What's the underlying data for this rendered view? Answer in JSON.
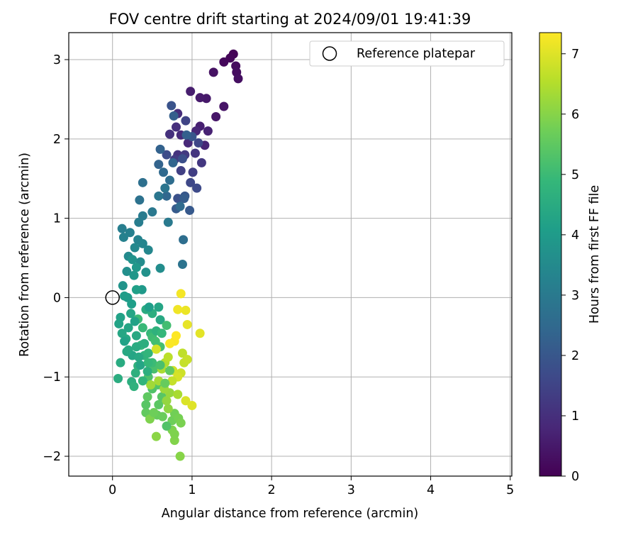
{
  "chart_data": {
    "type": "scatter",
    "title": "FOV centre drift starting at 2024/09/01 19:41:39",
    "xlabel": "Angular distance from reference (arcmin)",
    "ylabel": "Rotation from reference (arcmin)",
    "xlim": [
      -0.55,
      5.02
    ],
    "ylim": [
      -2.25,
      3.34
    ],
    "x_ticks": [
      0,
      1,
      2,
      3,
      4,
      5
    ],
    "y_ticks": [
      -2,
      -1,
      0,
      1,
      2,
      3
    ],
    "x_tick_labels": [
      "0",
      "1",
      "2",
      "3",
      "4",
      "5"
    ],
    "y_tick_labels": [
      "−2",
      "−1",
      "0",
      "1",
      "2",
      "3"
    ],
    "grid": true,
    "legend": {
      "placement": "top-right",
      "entries": [
        "Reference platepar"
      ]
    },
    "reference_point": {
      "x": 0.0,
      "y": 0.0,
      "label": "Reference platepar"
    },
    "colorbar": {
      "label": "Hours from first FF file",
      "colormap": "viridis",
      "range": [
        0,
        7.35
      ],
      "ticks": [
        0,
        1,
        2,
        3,
        4,
        5,
        6,
        7
      ],
      "tick_labels": [
        "0",
        "1",
        "2",
        "3",
        "4",
        "5",
        "6",
        "7"
      ]
    },
    "colormap_stops": [
      "#440154",
      "#482878",
      "#3e4989",
      "#31688e",
      "#26828e",
      "#1f9e89",
      "#35b779",
      "#6ece58",
      "#b5de2b",
      "#fde725"
    ],
    "series": [
      {
        "name": "Hours from first FF file",
        "columns": [
          "x",
          "y",
          "hours"
        ],
        "points": [
          [
            1.52,
            3.07,
            0.05
          ],
          [
            1.48,
            3.02,
            0.1
          ],
          [
            1.4,
            2.97,
            0.15
          ],
          [
            1.55,
            2.92,
            0.2
          ],
          [
            1.56,
            2.84,
            0.25
          ],
          [
            1.58,
            2.76,
            0.3
          ],
          [
            1.27,
            2.84,
            0.35
          ],
          [
            1.4,
            2.41,
            0.4
          ],
          [
            1.3,
            2.28,
            0.45
          ],
          [
            1.18,
            2.51,
            0.5
          ],
          [
            1.1,
            2.52,
            0.55
          ],
          [
            0.98,
            2.6,
            0.6
          ],
          [
            1.1,
            2.16,
            0.65
          ],
          [
            1.2,
            2.1,
            0.7
          ],
          [
            1.16,
            1.92,
            0.75
          ],
          [
            1.05,
            2.1,
            0.8
          ],
          [
            0.95,
            1.95,
            0.85
          ],
          [
            0.86,
            2.05,
            0.9
          ],
          [
            0.82,
            2.32,
            0.95
          ],
          [
            0.8,
            2.15,
            1.0
          ],
          [
            0.72,
            2.06,
            1.05
          ],
          [
            0.82,
            1.8,
            1.1
          ],
          [
            1.04,
            1.82,
            1.15
          ],
          [
            1.12,
            1.7,
            1.2
          ],
          [
            0.91,
            1.8,
            1.25
          ],
          [
            0.78,
            1.74,
            1.3
          ],
          [
            1.01,
            1.58,
            1.35
          ],
          [
            0.86,
            1.6,
            1.4
          ],
          [
            0.92,
            2.23,
            1.5
          ],
          [
            1.08,
            1.95,
            1.55
          ],
          [
            0.98,
            1.45,
            1.6
          ],
          [
            1.06,
            1.38,
            1.65
          ],
          [
            0.68,
            1.8,
            1.7
          ],
          [
            0.88,
            1.75,
            1.8
          ],
          [
            0.82,
            1.25,
            1.85
          ],
          [
            0.74,
            2.42,
            1.9
          ],
          [
            1.0,
            2.03,
            1.95
          ],
          [
            0.91,
            1.28,
            2.0
          ],
          [
            0.97,
            1.1,
            2.05
          ],
          [
            0.8,
            1.12,
            2.1
          ],
          [
            0.9,
            1.25,
            2.15
          ],
          [
            0.77,
            2.29,
            2.2
          ],
          [
            0.93,
            2.05,
            2.25
          ],
          [
            0.6,
            1.87,
            2.3
          ],
          [
            0.58,
            1.68,
            2.35
          ],
          [
            0.76,
            1.7,
            2.4
          ],
          [
            0.68,
            1.28,
            2.45
          ],
          [
            0.64,
            1.58,
            2.5
          ],
          [
            0.85,
            1.15,
            2.55
          ],
          [
            0.72,
            1.48,
            2.6
          ],
          [
            0.89,
            0.73,
            2.65
          ],
          [
            0.38,
            1.45,
            2.7
          ],
          [
            0.34,
            1.23,
            2.75
          ],
          [
            0.88,
            0.42,
            2.8
          ],
          [
            0.66,
            1.38,
            2.85
          ],
          [
            0.58,
            1.28,
            2.9
          ],
          [
            0.5,
            1.08,
            2.95
          ],
          [
            0.7,
            0.95,
            3.0
          ],
          [
            0.38,
            1.03,
            3.05
          ],
          [
            0.33,
            0.95,
            3.1
          ],
          [
            0.12,
            0.87,
            3.15
          ],
          [
            0.22,
            0.82,
            3.2
          ],
          [
            0.14,
            0.76,
            3.25
          ],
          [
            0.32,
            0.73,
            3.3
          ],
          [
            0.38,
            0.68,
            3.35
          ],
          [
            0.45,
            0.6,
            3.4
          ],
          [
            0.28,
            0.63,
            3.45
          ],
          [
            0.2,
            0.52,
            3.5
          ],
          [
            0.35,
            0.45,
            3.55
          ],
          [
            0.6,
            0.37,
            3.6
          ],
          [
            0.18,
            0.33,
            3.65
          ],
          [
            0.42,
            0.32,
            3.7
          ],
          [
            0.25,
            0.48,
            3.75
          ],
          [
            0.13,
            0.15,
            3.8
          ],
          [
            0.27,
            0.28,
            3.85
          ],
          [
            0.3,
            0.38,
            3.9
          ],
          [
            0.37,
            0.1,
            3.95
          ],
          [
            0.19,
            0.0,
            4.0
          ],
          [
            0.15,
            0.02,
            4.05
          ],
          [
            0.24,
            -0.08,
            4.1
          ],
          [
            0.3,
            0.1,
            4.15
          ],
          [
            0.1,
            -0.25,
            4.2
          ],
          [
            0.08,
            -0.33,
            4.25
          ],
          [
            0.23,
            -0.2,
            4.3
          ],
          [
            0.12,
            -0.45,
            4.35
          ],
          [
            0.17,
            -0.52,
            4.4
          ],
          [
            0.2,
            -0.66,
            4.45
          ],
          [
            0.1,
            -0.82,
            4.5
          ],
          [
            0.07,
            -1.02,
            4.55
          ],
          [
            0.24,
            -1.06,
            4.6
          ],
          [
            0.29,
            -0.95,
            4.65
          ],
          [
            0.32,
            -0.86,
            4.7
          ],
          [
            0.4,
            -0.73,
            4.75
          ],
          [
            0.45,
            -0.7,
            4.8
          ],
          [
            0.36,
            -0.6,
            4.85
          ],
          [
            0.48,
            -0.45,
            4.9
          ],
          [
            0.38,
            -0.38,
            4.95
          ],
          [
            0.32,
            -0.27,
            5.0
          ],
          [
            0.5,
            -0.5,
            5.05
          ],
          [
            0.54,
            -0.55,
            5.1
          ],
          [
            0.6,
            -0.62,
            5.15
          ],
          [
            0.52,
            -0.9,
            5.2
          ],
          [
            0.45,
            -1.0,
            5.25
          ],
          [
            0.5,
            -1.15,
            5.3
          ],
          [
            0.57,
            -1.1,
            5.35
          ],
          [
            0.62,
            -1.25,
            5.4
          ],
          [
            0.58,
            -1.35,
            5.45
          ],
          [
            0.44,
            -1.25,
            5.5
          ],
          [
            0.42,
            -1.45,
            5.55
          ],
          [
            0.56,
            -1.48,
            5.6
          ],
          [
            0.63,
            -1.5,
            5.65
          ],
          [
            0.75,
            -1.55,
            5.7
          ],
          [
            0.78,
            -1.46,
            5.75
          ],
          [
            0.83,
            -1.52,
            5.8
          ],
          [
            0.86,
            -1.58,
            5.85
          ],
          [
            0.75,
            -1.67,
            5.9
          ],
          [
            0.78,
            -1.8,
            5.95
          ],
          [
            0.85,
            -2.0,
            6.0
          ],
          [
            0.55,
            -1.75,
            6.05
          ],
          [
            0.7,
            -1.4,
            6.1
          ],
          [
            0.68,
            -1.3,
            6.15
          ],
          [
            0.72,
            -1.2,
            6.2
          ],
          [
            0.65,
            -1.15,
            6.25
          ],
          [
            0.48,
            -1.1,
            6.3
          ],
          [
            0.58,
            -1.05,
            6.35
          ],
          [
            0.62,
            -0.9,
            6.4
          ],
          [
            0.66,
            -0.82,
            6.5
          ],
          [
            0.7,
            -0.75,
            6.6
          ],
          [
            0.88,
            -0.7,
            6.65
          ],
          [
            0.9,
            -0.82,
            6.7
          ],
          [
            0.94,
            -0.78,
            6.75
          ],
          [
            0.86,
            -0.95,
            6.8
          ],
          [
            0.76,
            -0.92,
            6.85
          ],
          [
            0.82,
            -1.0,
            6.9
          ],
          [
            0.92,
            -1.3,
            6.95
          ],
          [
            1.0,
            -1.36,
            7.0
          ],
          [
            1.1,
            -0.45,
            7.05
          ],
          [
            0.94,
            -0.34,
            7.1
          ],
          [
            0.92,
            -0.16,
            7.15
          ],
          [
            0.82,
            -0.15,
            7.2
          ],
          [
            0.86,
            0.05,
            7.25
          ],
          [
            0.78,
            -0.55,
            7.3
          ],
          [
            0.72,
            -0.58,
            7.32
          ],
          [
            0.8,
            -0.48,
            7.35
          ],
          [
            0.55,
            -0.65,
            6.9
          ],
          [
            0.75,
            -1.05,
            6.7
          ],
          [
            0.82,
            -1.22,
            6.4
          ],
          [
            0.68,
            -1.62,
            5.3
          ],
          [
            0.78,
            -1.72,
            5.9
          ],
          [
            0.6,
            -0.28,
            4.4
          ],
          [
            0.42,
            -0.15,
            4.5
          ],
          [
            0.5,
            -0.2,
            4.6
          ],
          [
            0.35,
            -0.85,
            4.3
          ],
          [
            0.3,
            -0.48,
            4.4
          ],
          [
            0.15,
            -0.55,
            4.2
          ],
          [
            0.25,
            -0.73,
            4.3
          ],
          [
            0.18,
            -0.68,
            4.4
          ],
          [
            0.42,
            -1.35,
            5.4
          ],
          [
            0.66,
            -1.08,
            5.6
          ],
          [
            0.55,
            -0.42,
            4.7
          ],
          [
            0.46,
            -0.12,
            4.1
          ],
          [
            0.58,
            -0.12,
            4.3
          ],
          [
            0.28,
            -0.3,
            4.2
          ],
          [
            0.44,
            -0.93,
            4.6
          ],
          [
            0.38,
            -1.05,
            4.8
          ],
          [
            0.27,
            -1.12,
            4.7
          ],
          [
            0.68,
            -0.35,
            5.1
          ],
          [
            0.62,
            -0.45,
            4.9
          ],
          [
            0.5,
            -0.82,
            5.0
          ],
          [
            0.3,
            -0.62,
            4.5
          ],
          [
            0.2,
            -0.38,
            4.3
          ],
          [
            0.4,
            -0.58,
            4.6
          ],
          [
            0.6,
            -0.85,
            5.2
          ],
          [
            0.72,
            -0.92,
            5.5
          ],
          [
            0.47,
            -1.53,
            5.9
          ],
          [
            0.52,
            -1.45,
            5.7
          ],
          [
            0.45,
            -0.82,
            4.9
          ],
          [
            0.33,
            -0.75,
            4.4
          ]
        ]
      }
    ]
  }
}
